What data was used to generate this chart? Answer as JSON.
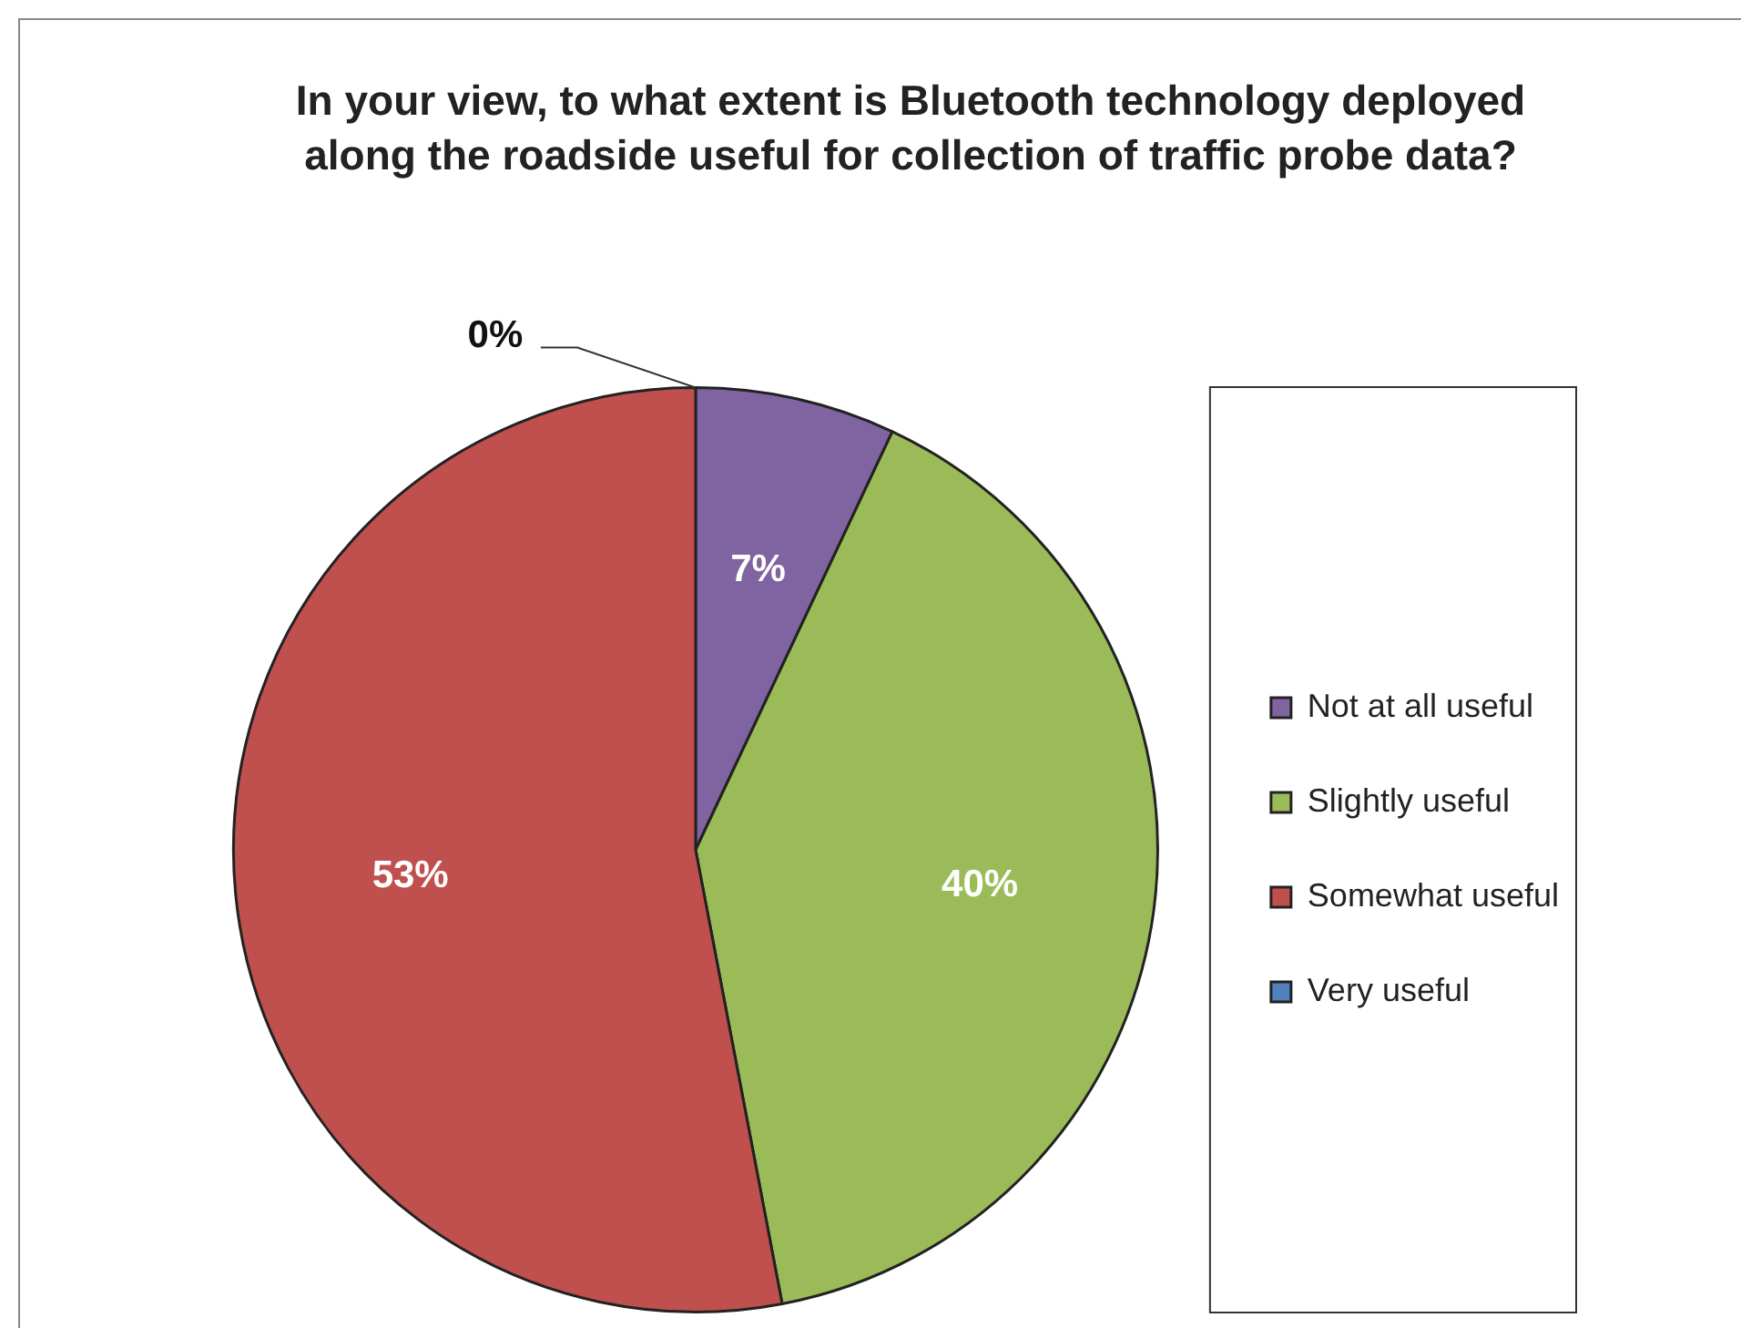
{
  "chart_data": {
    "type": "pie",
    "title": "In your view, to what extent is Bluetooth technology deployed along the roadside useful for collection of traffic probe data?",
    "categories": [
      "Not at all useful",
      "Slightly useful",
      "Somewhat useful",
      "Very useful"
    ],
    "values": [
      7,
      40,
      53,
      0
    ],
    "colors": [
      "#8064a2",
      "#9bbb59",
      "#c0504d",
      "#4f81bd"
    ],
    "value_labels": [
      "7%",
      "40%",
      "53%",
      "0%"
    ],
    "legend": "right"
  }
}
